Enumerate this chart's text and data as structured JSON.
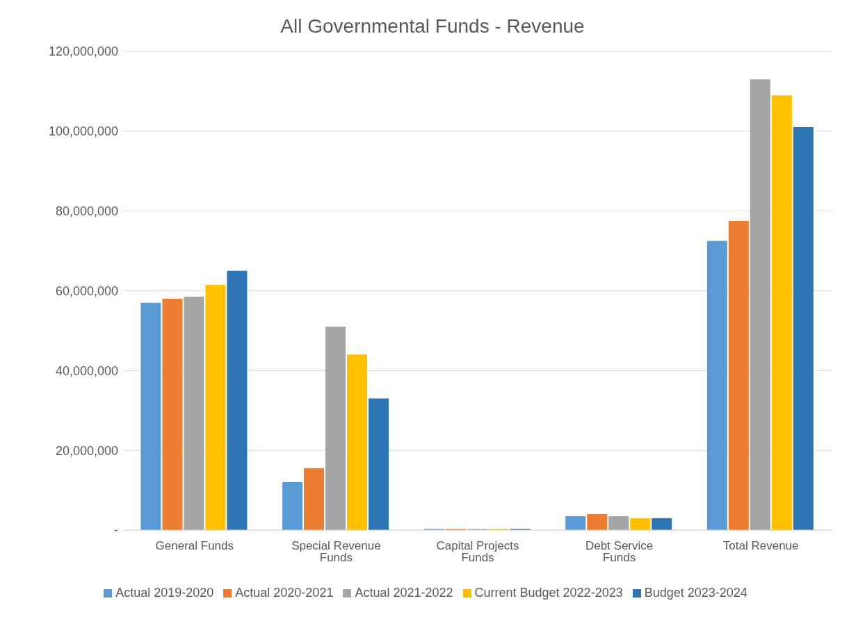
{
  "chart_data": {
    "type": "bar",
    "title": "All Governmental Funds - Revenue",
    "categories": [
      "General Funds",
      "Special Revenue Funds",
      "Capital Projects Funds",
      "Debt Service Funds",
      "Total Revenue"
    ],
    "series": [
      {
        "name": "Actual 2019-2020",
        "color": "#5b9bd5",
        "values": [
          57000000,
          12000000,
          300000,
          3500000,
          72500000
        ]
      },
      {
        "name": "Actual 2020-2021",
        "color": "#ed7d31",
        "values": [
          58000000,
          15500000,
          300000,
          4000000,
          77500000
        ]
      },
      {
        "name": "Actual 2021-2022",
        "color": "#a5a5a5",
        "values": [
          58500000,
          51000000,
          300000,
          3500000,
          113000000
        ]
      },
      {
        "name": "Current Budget 2022-2023",
        "color": "#ffc000",
        "values": [
          61500000,
          44000000,
          300000,
          3000000,
          109000000
        ]
      },
      {
        "name": "Budget 2023-2024",
        "color": "#2e75b6",
        "values": [
          65000000,
          33000000,
          300000,
          3000000,
          101000000
        ]
      }
    ],
    "ylim": [
      0,
      120000000
    ],
    "yticks": [
      {
        "value": 0,
        "label": "-"
      },
      {
        "value": 20000000,
        "label": "20,000,000"
      },
      {
        "value": 40000000,
        "label": "40,000,000"
      },
      {
        "value": 60000000,
        "label": "60,000,000"
      },
      {
        "value": 80000000,
        "label": "80,000,000"
      },
      {
        "value": 100000000,
        "label": "100,000,000"
      },
      {
        "value": 120000000,
        "label": "120,000,000"
      }
    ],
    "grid": "y",
    "legend": "bottom"
  }
}
